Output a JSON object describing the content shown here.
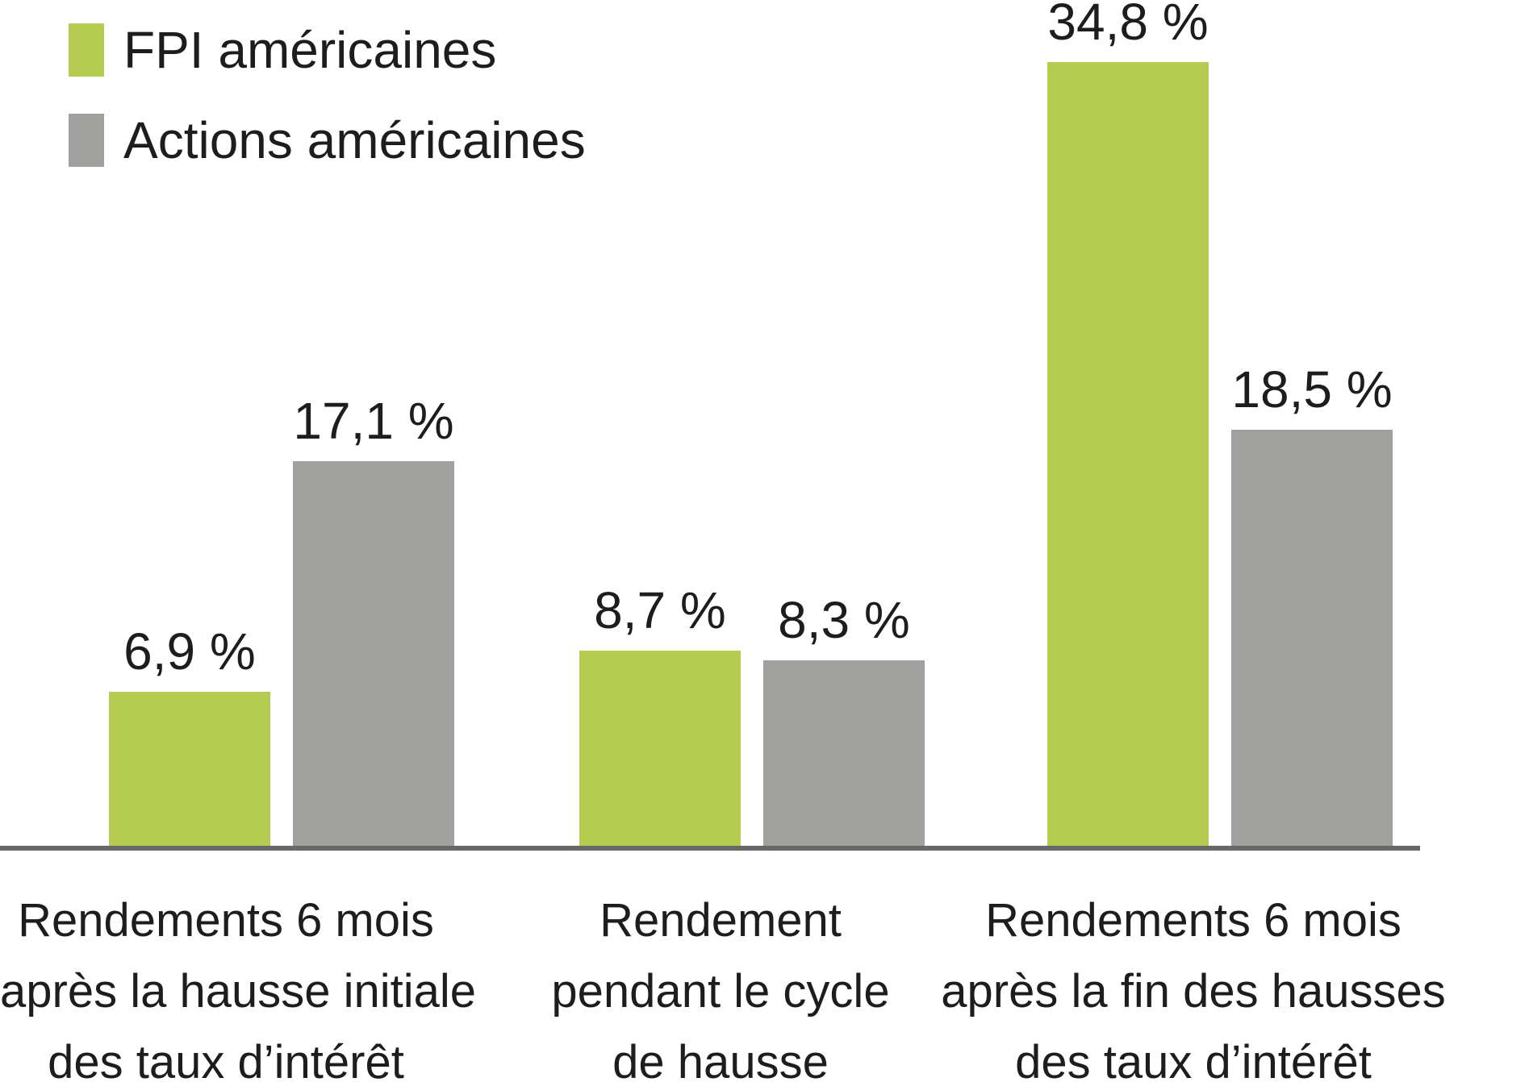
{
  "chart_data": {
    "type": "bar",
    "title": "",
    "xlabel": "",
    "ylabel": "",
    "unit": "%",
    "grid": false,
    "legend_position": "top-left",
    "ylim": [
      0,
      36
    ],
    "categories": [
      "Rendements 6 mois après la hausse initiale des taux d’intérêt",
      "Rendement pendant le cycle de hausse",
      "Rendements 6 mois après la fin des hausses des taux d’intérêt"
    ],
    "series": [
      {
        "name": "FPI américaines",
        "values": [
          6.9,
          8.7,
          34.8
        ],
        "labels": [
          "6,9 %",
          "8,7 %",
          "34,8 %"
        ],
        "color": "#b5cb52"
      },
      {
        "name": "Actions américaines",
        "values": [
          17.1,
          8.3,
          18.5
        ],
        "labels": [
          "17,1 %",
          "8,3 %",
          "18,5 %"
        ],
        "color": "#a0a09e"
      }
    ]
  },
  "legend": {
    "items": [
      {
        "label": "FPI américaines",
        "color": "#b5cb52"
      },
      {
        "label": "Actions américaines",
        "color": "#a0a09e"
      }
    ]
  },
  "category_labels": [
    {
      "lines": [
        "Rendements 6 mois",
        "après la hausse initiale",
        "des taux d’intérêt"
      ]
    },
    {
      "lines": [
        "Rendement",
        "pendant le cycle",
        "de hausse"
      ]
    },
    {
      "lines": [
        "Rendements 6 mois",
        "après la fin des hausses",
        "des taux d’intérêt"
      ]
    }
  ],
  "colors": {
    "fpi_green": "#b5cb52",
    "actions_gray": "#a0a09e",
    "axis_line": "#686868",
    "text": "#1d1d1f",
    "background": "#ffffff"
  }
}
